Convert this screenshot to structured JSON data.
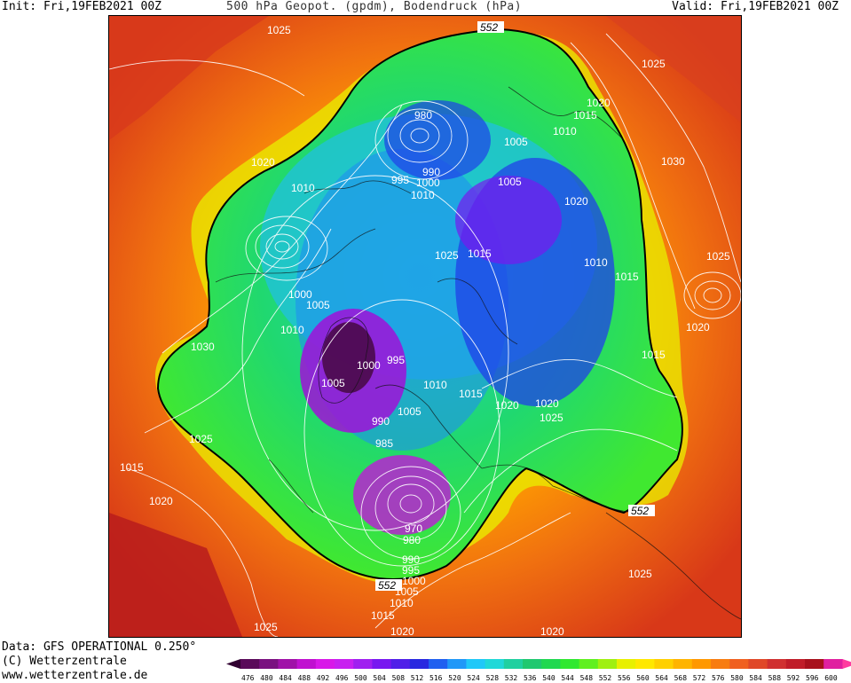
{
  "header": {
    "init": "Init: Fri,19FEB2021 00Z",
    "title": "500 hPa Geopot. (gpdm), Bodendruck (hPa)",
    "valid": "Valid: Fri,19FEB2021 00Z"
  },
  "footer": {
    "data_source": "Data: GFS OPERATIONAL 0.250°",
    "copyright": "(C) Wetterzentrale",
    "url": "www.wetterzentrale.de"
  },
  "legend": {
    "ticks": [
      "476",
      "480",
      "484",
      "488",
      "492",
      "496",
      "500",
      "504",
      "508",
      "512",
      "516",
      "520",
      "524",
      "528",
      "532",
      "536",
      "540",
      "544",
      "548",
      "552",
      "556",
      "560",
      "564",
      "568",
      "572",
      "576",
      "580",
      "584",
      "588",
      "592",
      "596",
      "600"
    ],
    "colors": [
      "#5a0a5a",
      "#7a1080",
      "#a010a8",
      "#c010d0",
      "#d818e8",
      "#c820f0",
      "#a020f0",
      "#7818f0",
      "#5020e8",
      "#2828e0",
      "#2060f0",
      "#2098f8",
      "#20c8f8",
      "#20d8d8",
      "#20d0a0",
      "#20c870",
      "#20d850",
      "#30e830",
      "#60f020",
      "#a0f010",
      "#e8f000",
      "#ffe800",
      "#ffd000",
      "#ffb400",
      "#ff9800",
      "#f87c10",
      "#f06020",
      "#e04828",
      "#d03030",
      "#c01c28",
      "#a8101c",
      "#e020a0"
    ],
    "edge_color_left": "#300030",
    "edge_color_right": "#ff3ca0"
  },
  "map": {
    "contour_552_label": "552",
    "pressure_labels": [
      "1025",
      "1025",
      "1020",
      "1015",
      "1010",
      "1005",
      "980",
      "990",
      "1000",
      "995",
      "1010",
      "1005",
      "1020",
      "1010",
      "1020",
      "1025",
      "1015",
      "1000",
      "1005",
      "1010",
      "1030",
      "995",
      "1000",
      "1005",
      "1010",
      "1015",
      "1020",
      "1020",
      "1025",
      "1010",
      "1015",
      "1030",
      "1025",
      "1020",
      "1015",
      "990",
      "1005",
      "985",
      "1025",
      "1015",
      "1020",
      "970",
      "980",
      "990",
      "995",
      "1000",
      "1005",
      "1010",
      "1015",
      "1020",
      "1025",
      "1020",
      "1025",
      "1025"
    ]
  }
}
